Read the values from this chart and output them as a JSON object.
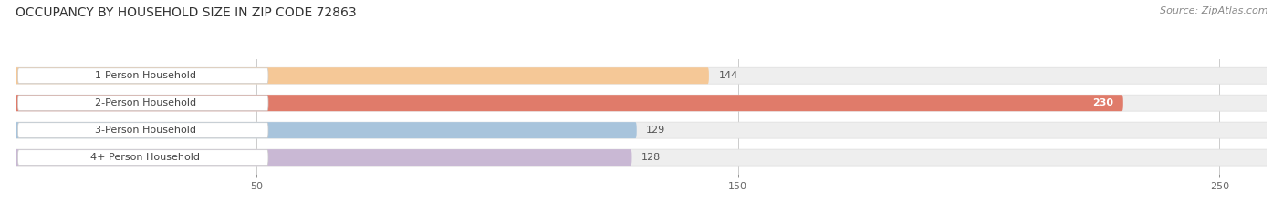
{
  "title": "OCCUPANCY BY HOUSEHOLD SIZE IN ZIP CODE 72863",
  "source": "Source: ZipAtlas.com",
  "categories": [
    "1-Person Household",
    "2-Person Household",
    "3-Person Household",
    "4+ Person Household"
  ],
  "values": [
    144,
    230,
    129,
    128
  ],
  "bar_colors": [
    "#F5C897",
    "#E07B6A",
    "#A8C4DC",
    "#C9B8D4"
  ],
  "bar_bg_color": "#eeeeee",
  "label_box_color": "#ffffff",
  "xlim": [
    0,
    260
  ],
  "xticks": [
    50,
    150,
    250
  ],
  "background_color": "#ffffff",
  "title_fontsize": 10,
  "source_fontsize": 8,
  "label_fontsize": 8,
  "value_fontsize": 8,
  "bar_height": 0.6,
  "figwidth": 14.06,
  "figheight": 2.33
}
